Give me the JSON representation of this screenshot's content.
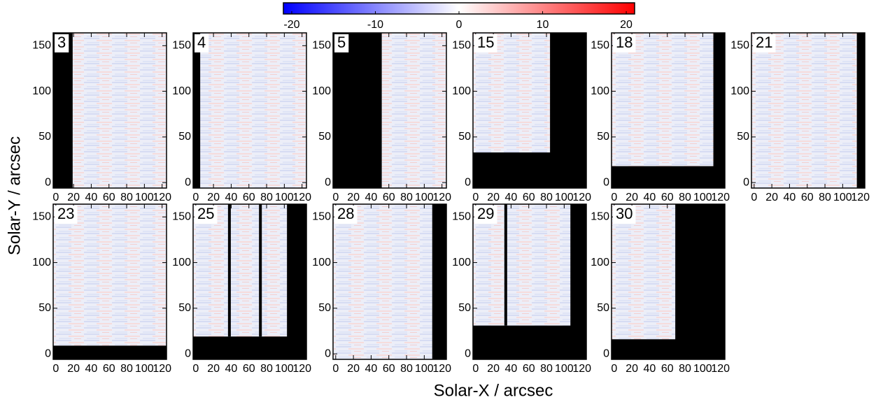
{
  "chart_data": {
    "type": "image-grid",
    "xlabel": "Solar-X / arcsec",
    "ylabel": "Solar-Y / arcsec",
    "xlim": [
      -3,
      125
    ],
    "ylim": [
      -6,
      164
    ],
    "xticks": [
      0,
      20,
      40,
      60,
      80,
      100,
      120
    ],
    "yticks": [
      0,
      50,
      100,
      150
    ],
    "colorbar": {
      "colors": [
        "#0000ff",
        "#ffffff",
        "#ff0000"
      ],
      "lim": [
        -21,
        21
      ],
      "ticks": [
        -20,
        -10,
        0,
        10,
        20
      ]
    },
    "panels": [
      {
        "label": "3",
        "extent": [
          19,
          125,
          -6,
          164
        ]
      },
      {
        "label": "4",
        "extent": [
          5,
          125,
          -6,
          164
        ]
      },
      {
        "label": "5",
        "extent": [
          52,
          125,
          -6,
          164
        ]
      },
      {
        "label": "15",
        "extent": [
          -3,
          84,
          33,
          164
        ]
      },
      {
        "label": "18",
        "extent": [
          -3,
          112,
          18,
          164
        ]
      },
      {
        "label": "21",
        "extent": [
          -3,
          116,
          -6,
          164
        ]
      },
      {
        "label": "23",
        "extent": [
          -3,
          125,
          9,
          164
        ]
      },
      {
        "label": "25",
        "extent": [
          -3,
          103,
          19,
          164
        ],
        "gaps": [
          38,
          73
        ]
      },
      {
        "label": "28",
        "extent": [
          -3,
          109,
          -6,
          164
        ]
      },
      {
        "label": "29",
        "extent": [
          -3,
          107,
          31,
          164
        ],
        "gaps": [
          34
        ]
      },
      {
        "label": "30",
        "extent": [
          -3,
          69,
          16,
          164
        ]
      }
    ]
  }
}
